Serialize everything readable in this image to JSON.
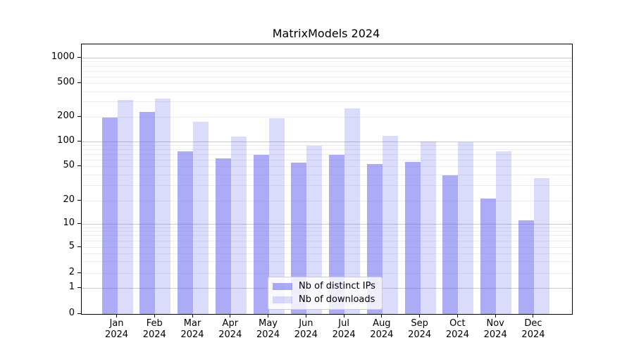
{
  "chart_data": {
    "type": "bar",
    "title": "MatrixModels 2024",
    "categories": [
      "Jan 2024",
      "Feb 2024",
      "Mar 2024",
      "Apr 2024",
      "May 2024",
      "Jun 2024",
      "Jul 2024",
      "Aug 2024",
      "Sep 2024",
      "Oct 2024",
      "Nov 2024",
      "Dec 2024"
    ],
    "series": [
      {
        "name": "Nb of distinct IPs",
        "color": "#6666ee",
        "alpha": 0.55,
        "values": [
          195,
          225,
          76,
          62,
          68,
          55,
          68,
          53,
          56,
          39,
          21,
          11
        ]
      },
      {
        "name": "Nb of downloads",
        "color": "#6666ee",
        "alpha": 0.235,
        "values": [
          315,
          330,
          172,
          114,
          190,
          88,
          250,
          116,
          100,
          97,
          76,
          36
        ]
      }
    ],
    "xlabel": "",
    "ylabel": "",
    "yscale": "symlog",
    "yticks": [
      0,
      1,
      2,
      5,
      10,
      20,
      50,
      100,
      200,
      500,
      1000
    ],
    "ylim": [
      0,
      1450
    ],
    "grid": true,
    "legend_position": "lower-center-inside"
  },
  "colors": {
    "major_grid": "#c9c9c9",
    "minor_grid": "#ededed",
    "spine": "#000000",
    "legend_border": "#cccccc",
    "bar_ips_rendered": "#abaaf3",
    "bar_downloads_rendered": "#dbdbf9"
  }
}
